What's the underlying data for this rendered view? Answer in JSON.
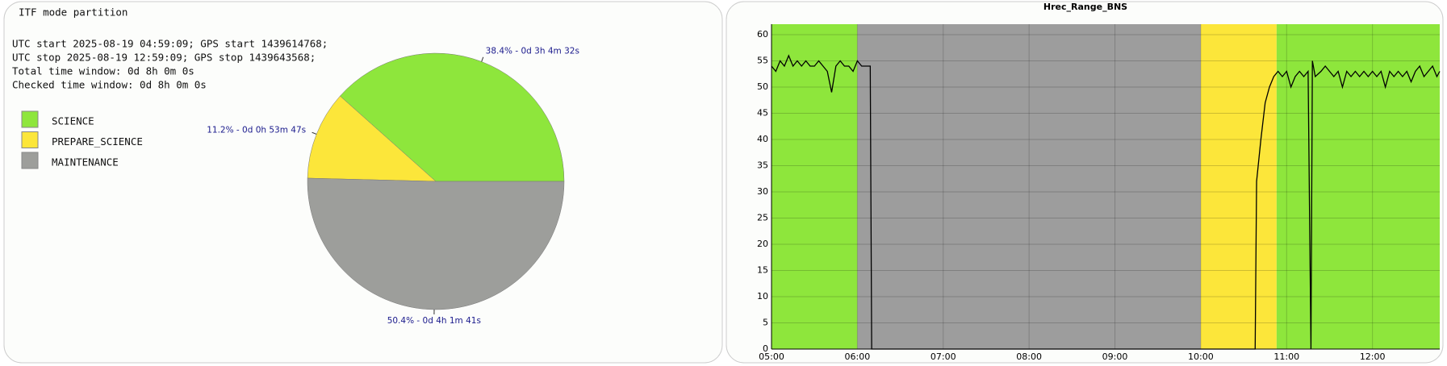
{
  "chart_data": [
    {
      "type": "pie",
      "title": "ITF mode partition",
      "info_lines": [
        "UTC start 2025-08-19 04:59:09; GPS start 1439614768;",
        "UTC stop 2025-08-19 12:59:09; GPS stop 1439643568;",
        "Total time window: 0d 8h 0m 0s",
        "Checked time window: 0d 8h 0m 0s"
      ],
      "categories": [
        "SCIENCE",
        "PREPARE_SCIENCE",
        "MAINTENANCE"
      ],
      "values": [
        38.4,
        11.2,
        50.4
      ],
      "value_labels": [
        "38.4% - 0d 3h 4m 32s",
        "11.2% - 0d 0h 53m 47s",
        "50.4% - 0d 4h 1m 41s"
      ],
      "colors": [
        "#8ee63c",
        "#fce63a",
        "#9d9e9b"
      ]
    },
    {
      "type": "line",
      "title": "Hrec_Range_BNS",
      "bands": [
        {
          "start": "05:00",
          "end": "06:00",
          "color": "#8ee63c"
        },
        {
          "start": "06:00",
          "end": "10:00",
          "color": "#9d9d9d"
        },
        {
          "start": "10:00",
          "end": "10:53",
          "color": "#fce63a"
        },
        {
          "start": "10:53",
          "end": "12:47",
          "color": "#8ee63c"
        }
      ],
      "x": [
        "05:00",
        "05:03",
        "05:06",
        "05:09",
        "05:12",
        "05:15",
        "05:18",
        "05:21",
        "05:24",
        "05:27",
        "05:30",
        "05:33",
        "05:36",
        "05:39",
        "05:42",
        "05:45",
        "05:48",
        "05:51",
        "05:54",
        "05:57",
        "06:00",
        "06:03",
        "06:06",
        "06:09",
        "06:10",
        "08:00",
        "10:38",
        "10:39",
        "10:42",
        "10:45",
        "10:48",
        "10:51",
        "10:54",
        "10:57",
        "11:00",
        "11:03",
        "11:06",
        "11:09",
        "11:12",
        "11:15",
        "11:17",
        "11:18",
        "11:20",
        "11:24",
        "11:27",
        "11:30",
        "11:33",
        "11:36",
        "11:39",
        "11:42",
        "11:45",
        "11:48",
        "11:51",
        "11:54",
        "11:57",
        "12:00",
        "12:03",
        "12:06",
        "12:09",
        "12:12",
        "12:15",
        "12:18",
        "12:21",
        "12:24",
        "12:27",
        "12:30",
        "12:33",
        "12:36",
        "12:39",
        "12:42",
        "12:45",
        "12:47"
      ],
      "series": [
        {
          "name": "Hrec_Range_BNS",
          "color": "#000000",
          "values": [
            54,
            53,
            55,
            54,
            56,
            54,
            55,
            54,
            55,
            54,
            54,
            55,
            54,
            53,
            49,
            54,
            55,
            54,
            54,
            53,
            55,
            54,
            54,
            54,
            0,
            0,
            0,
            32,
            40,
            47,
            50,
            52,
            53,
            52,
            53,
            50,
            52,
            53,
            52,
            53,
            0,
            55,
            52,
            53,
            54,
            53,
            52,
            53,
            50,
            53,
            52,
            53,
            52,
            53,
            52,
            53,
            52,
            53,
            50,
            53,
            52,
            53,
            52,
            53,
            51,
            53,
            54,
            52,
            53,
            54,
            52,
            53
          ]
        }
      ],
      "xlim": [
        "05:00",
        "12:47"
      ],
      "xticks": [
        "05:00",
        "06:00",
        "07:00",
        "08:00",
        "09:00",
        "10:00",
        "11:00",
        "12:00"
      ],
      "ylim": [
        0,
        62
      ],
      "yticks": [
        0,
        5,
        10,
        15,
        20,
        25,
        30,
        35,
        40,
        45,
        50,
        55,
        60
      ],
      "grid": true
    }
  ]
}
